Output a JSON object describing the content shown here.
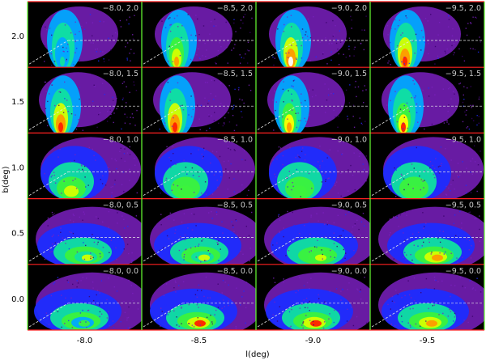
{
  "chart_data": {
    "type": "heatmap",
    "layout": "grid of 5 rows x 4 columns of density panels",
    "xlabel": "l(deg)",
    "ylabel": "b(deg)",
    "x_ticks": [
      "-8.0",
      "-8.5",
      "-9.0",
      "-9.5"
    ],
    "y_ticks": [
      "2.0",
      "1.5",
      "1.0",
      "0.5",
      "0.0"
    ],
    "colorscale": [
      "#000000",
      "#3a006a",
      "#7a20c0",
      "#1e2cff",
      "#00a8ff",
      "#10e0a0",
      "#3cf23c",
      "#d4ff00",
      "#ffff00",
      "#ff9a00",
      "#ff2000",
      "#ffffff"
    ],
    "row_separator_color": "#ff2020",
    "col_separator_color": "#66ff33",
    "label_color": "#c8c8c8",
    "panels": [
      [
        {
          "label": "−8.0, 2.0",
          "peak": 0.45
        },
        {
          "label": "−8.5, 2.0",
          "peak": 0.78
        },
        {
          "label": "−9.0, 2.0",
          "peak": 1.0
        },
        {
          "label": "−9.5, 2.0",
          "peak": 0.95
        }
      ],
      [
        {
          "label": "−8.0, 1.5",
          "peak": 0.92
        },
        {
          "label": "−8.5, 1.5",
          "peak": 0.95
        },
        {
          "label": "−9.0, 1.5",
          "peak": 0.85
        },
        {
          "label": "−9.5, 1.5",
          "peak": 0.88
        }
      ],
      [
        {
          "label": "−8.0, 1.0",
          "peak": 0.62
        },
        {
          "label": "−8.5, 1.0",
          "peak": 0.58
        },
        {
          "label": "−9.0, 1.0",
          "peak": 0.56
        },
        {
          "label": "−9.5, 1.0",
          "peak": 0.55
        }
      ],
      [
        {
          "label": "−8.0, 0.5",
          "peak": 0.6
        },
        {
          "label": "−8.5, 0.5",
          "peak": 0.66
        },
        {
          "label": "−9.0, 0.5",
          "peak": 0.68
        },
        {
          "label": "−9.5, 0.5",
          "peak": 0.82
        }
      ],
      [
        {
          "label": "−8.0, 0.0",
          "peak": 0.52
        },
        {
          "label": "−8.5, 0.0",
          "peak": 0.9
        },
        {
          "label": "−9.0, 0.0",
          "peak": 0.9
        },
        {
          "label": "−9.5, 0.0",
          "peak": 0.86
        }
      ]
    ]
  }
}
